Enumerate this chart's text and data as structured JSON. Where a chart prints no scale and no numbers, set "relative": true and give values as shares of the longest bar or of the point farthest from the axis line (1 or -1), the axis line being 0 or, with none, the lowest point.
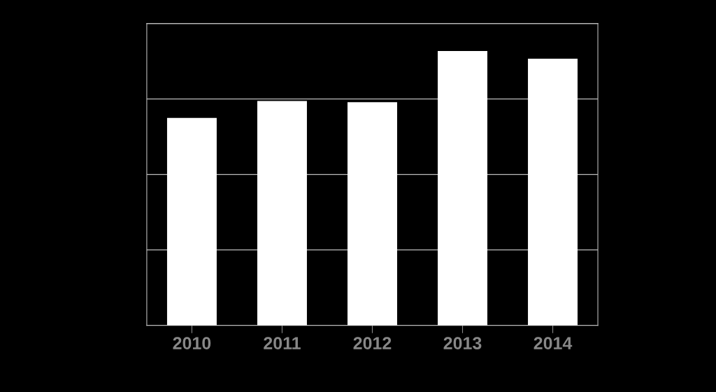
{
  "chart_data": {
    "type": "bar",
    "categories": [
      "2010",
      "2011",
      "2012",
      "2013",
      "2014"
    ],
    "values": [
      0.756,
      0.818,
      0.813,
      1.0,
      0.972
    ],
    "color": "#ffffff",
    "relative": true,
    "grid": "y"
  }
}
